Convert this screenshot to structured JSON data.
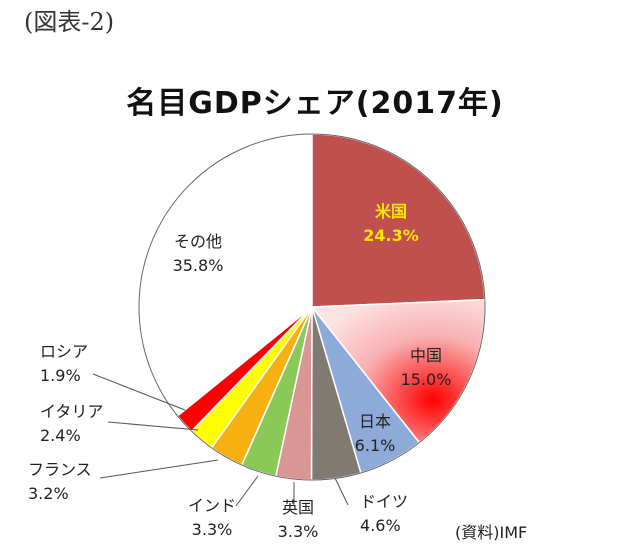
{
  "figure_label": "(図表-2)",
  "source_note": "(資料)IMF",
  "chart_data": {
    "type": "pie",
    "title": "名目GDPシェア(2017年)",
    "unit": "%",
    "slices": [
      {
        "name": "米国",
        "value": 24.3,
        "label": "24.3%",
        "color": "#c0504d"
      },
      {
        "name": "中国",
        "value": 15.0,
        "label": "15.0%",
        "color": "#f2a3a3"
      },
      {
        "name": "日本",
        "value": 6.1,
        "label": "6.1%",
        "color": "#8eaad8"
      },
      {
        "name": "ドイツ",
        "value": 4.6,
        "label": "4.6%",
        "color": "#7f7a72"
      },
      {
        "name": "英国",
        "value": 3.3,
        "label": "3.3%",
        "color": "#d99694"
      },
      {
        "name": "インド",
        "value": 3.3,
        "label": "3.3%",
        "color": "#8ac858"
      },
      {
        "name": "フランス",
        "value": 3.2,
        "label": "3.2%",
        "color": "#f7b012"
      },
      {
        "name": "イタリア",
        "value": 2.4,
        "label": "2.4%",
        "color": "#ffff00"
      },
      {
        "name": "ロシア",
        "value": 1.9,
        "label": "1.9%",
        "color": "#ff0000"
      },
      {
        "name": "その他",
        "value": 35.8,
        "label": "35.8%",
        "color": "#ffffff"
      }
    ]
  }
}
